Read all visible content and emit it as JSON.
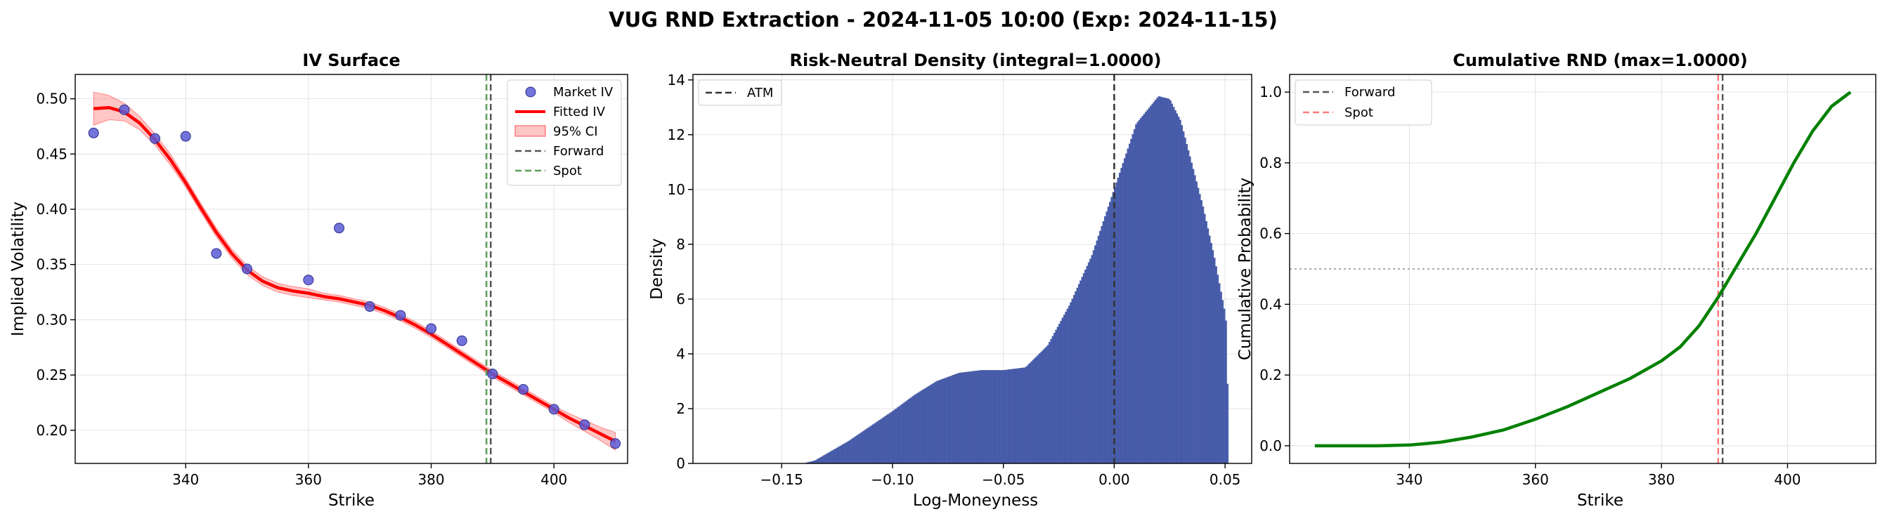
{
  "figure": {
    "suptitle": "VUG RND Extraction - 2024-11-05 10:00 (Exp: 2024-11-15)"
  },
  "colors": {
    "market_iv": "#5b5bd6",
    "fitted_iv": "#ff0000",
    "ci_band": "#ff8080",
    "forward": "#555555",
    "spot_left": "#5a9e5a",
    "spot_right": "#ff7b7b",
    "density_bar": "#4a5fad",
    "cdf_line": "#008000",
    "atm": "#333333",
    "half_line": "#aaaaaa"
  },
  "chart_data": [
    {
      "type": "scatter",
      "title": "IV Surface",
      "xlabel": "Strike",
      "ylabel": "Implied Volatility",
      "xlim": [
        322,
        412
      ],
      "ylim": [
        0.17,
        0.522
      ],
      "xticks": [
        340,
        360,
        380,
        400
      ],
      "yticks": [
        0.2,
        0.25,
        0.3,
        0.35,
        0.4,
        0.45,
        0.5
      ],
      "ytick_labels": [
        "0.20",
        "0.25",
        "0.30",
        "0.35",
        "0.40",
        "0.45",
        "0.50"
      ],
      "grid": true,
      "legend_position": "upper right",
      "series": [
        {
          "name": "Market IV",
          "kind": "points",
          "x": [
            325,
            330,
            335,
            340,
            345,
            350,
            360,
            365,
            370,
            375,
            380,
            385,
            390,
            395,
            400,
            405,
            410
          ],
          "y": [
            0.469,
            0.49,
            0.464,
            0.466,
            0.36,
            0.346,
            0.336,
            0.383,
            0.312,
            0.304,
            0.292,
            0.281,
            0.251,
            0.237,
            0.219,
            0.205,
            0.188
          ]
        },
        {
          "name": "Fitted IV",
          "kind": "line",
          "x": [
            325,
            327.5,
            330,
            332.5,
            335,
            337.5,
            340,
            342.5,
            345,
            347.5,
            350,
            352.5,
            355,
            357.5,
            360,
            362.5,
            365,
            367.5,
            370,
            372.5,
            375,
            377.5,
            380,
            382.5,
            385,
            387.5,
            390,
            392.5,
            395,
            397.5,
            400,
            402.5,
            405,
            407.5,
            410
          ],
          "y": [
            0.491,
            0.492,
            0.488,
            0.478,
            0.463,
            0.445,
            0.424,
            0.401,
            0.379,
            0.36,
            0.345,
            0.335,
            0.329,
            0.326,
            0.324,
            0.321,
            0.319,
            0.316,
            0.313,
            0.308,
            0.302,
            0.295,
            0.287,
            0.278,
            0.269,
            0.26,
            0.251,
            0.243,
            0.235,
            0.227,
            0.219,
            0.211,
            0.204,
            0.197,
            0.19
          ]
        },
        {
          "name": "95% CI",
          "kind": "band",
          "x": [
            325,
            327.5,
            330,
            332.5,
            335,
            337.5,
            340,
            342.5,
            345,
            347.5,
            350,
            352.5,
            355,
            357.5,
            360,
            362.5,
            365,
            367.5,
            370,
            372.5,
            375,
            377.5,
            380,
            382.5,
            385,
            387.5,
            390,
            392.5,
            395,
            397.5,
            400,
            402.5,
            405,
            407.5,
            410
          ],
          "lower": [
            0.476,
            0.481,
            0.48,
            0.472,
            0.458,
            0.44,
            0.42,
            0.397,
            0.375,
            0.356,
            0.341,
            0.331,
            0.325,
            0.322,
            0.32,
            0.318,
            0.316,
            0.313,
            0.31,
            0.305,
            0.299,
            0.292,
            0.284,
            0.275,
            0.266,
            0.257,
            0.248,
            0.24,
            0.232,
            0.224,
            0.216,
            0.207,
            0.199,
            0.191,
            0.182
          ],
          "upper": [
            0.506,
            0.503,
            0.496,
            0.484,
            0.468,
            0.45,
            0.428,
            0.405,
            0.383,
            0.364,
            0.349,
            0.339,
            0.333,
            0.33,
            0.328,
            0.324,
            0.322,
            0.319,
            0.316,
            0.311,
            0.305,
            0.298,
            0.29,
            0.281,
            0.272,
            0.263,
            0.254,
            0.246,
            0.238,
            0.23,
            0.222,
            0.215,
            0.209,
            0.203,
            0.198
          ]
        },
        {
          "name": "Forward",
          "kind": "vline",
          "x": 389.7
        },
        {
          "name": "Spot",
          "kind": "vline",
          "x": 389.0
        }
      ]
    },
    {
      "type": "bar",
      "title": "Risk-Neutral Density (integral=1.0000)",
      "xlabel": "Log-Moneyness",
      "ylabel": "Density",
      "xlim": [
        -0.19,
        0.062
      ],
      "ylim": [
        0,
        14.2
      ],
      "xticks": [
        -0.15,
        -0.1,
        -0.05,
        0.0,
        0.05
      ],
      "xtick_labels": [
        "−0.15",
        "−0.10",
        "−0.05",
        "0.00",
        "0.05"
      ],
      "yticks": [
        0,
        2,
        4,
        6,
        8,
        10,
        12,
        14
      ],
      "ytick_labels": [
        "0",
        "2",
        "4",
        "6",
        "8",
        "10",
        "12",
        "14"
      ],
      "grid": true,
      "legend_position": "upper left",
      "density_knots": {
        "x": [
          -0.14,
          -0.135,
          -0.12,
          -0.1,
          -0.09,
          -0.08,
          -0.07,
          -0.06,
          -0.05,
          -0.04,
          -0.03,
          -0.02,
          -0.01,
          0.0,
          0.01,
          0.02,
          0.025,
          0.03,
          0.04,
          0.045,
          0.05,
          0.0515
        ],
        "y": [
          0.0,
          0.1,
          0.8,
          1.9,
          2.5,
          3.0,
          3.3,
          3.4,
          3.4,
          3.5,
          4.3,
          5.8,
          7.6,
          10.0,
          12.4,
          13.4,
          13.3,
          12.5,
          9.4,
          7.6,
          5.5,
          4.4
        ]
      },
      "cutoff_edge": {
        "x": 0.0515,
        "y_top": 4.4,
        "y_drop": 2.9
      },
      "series": [
        {
          "name": "ATM",
          "kind": "vline",
          "x": 0.0
        }
      ]
    },
    {
      "type": "line",
      "title": "Cumulative RND (max=1.0000)",
      "xlabel": "Strike",
      "ylabel": "Cumulative Probability",
      "xlim": [
        321,
        414
      ],
      "ylim": [
        -0.05,
        1.05
      ],
      "xticks": [
        340,
        360,
        380,
        400
      ],
      "yticks": [
        0.0,
        0.2,
        0.4,
        0.6,
        0.8,
        1.0
      ],
      "ytick_labels": [
        "0.0",
        "0.2",
        "0.4",
        "0.6",
        "0.8",
        "1.0"
      ],
      "grid": true,
      "legend_position": "upper left",
      "reference_hline": 0.5,
      "series": [
        {
          "name": "CDF",
          "kind": "line",
          "x": [
            325,
            335,
            340,
            345,
            350,
            355,
            360,
            365,
            370,
            375,
            380,
            383,
            386,
            389,
            392,
            395,
            398,
            401,
            404,
            407,
            410
          ],
          "y": [
            0.0,
            0.0,
            0.002,
            0.01,
            0.025,
            0.045,
            0.075,
            0.11,
            0.15,
            0.19,
            0.24,
            0.28,
            0.34,
            0.42,
            0.51,
            0.6,
            0.7,
            0.8,
            0.89,
            0.96,
            1.0
          ]
        },
        {
          "name": "Forward",
          "kind": "vline",
          "x": 389.7
        },
        {
          "name": "Spot",
          "kind": "vline",
          "x": 389.0
        }
      ]
    }
  ]
}
